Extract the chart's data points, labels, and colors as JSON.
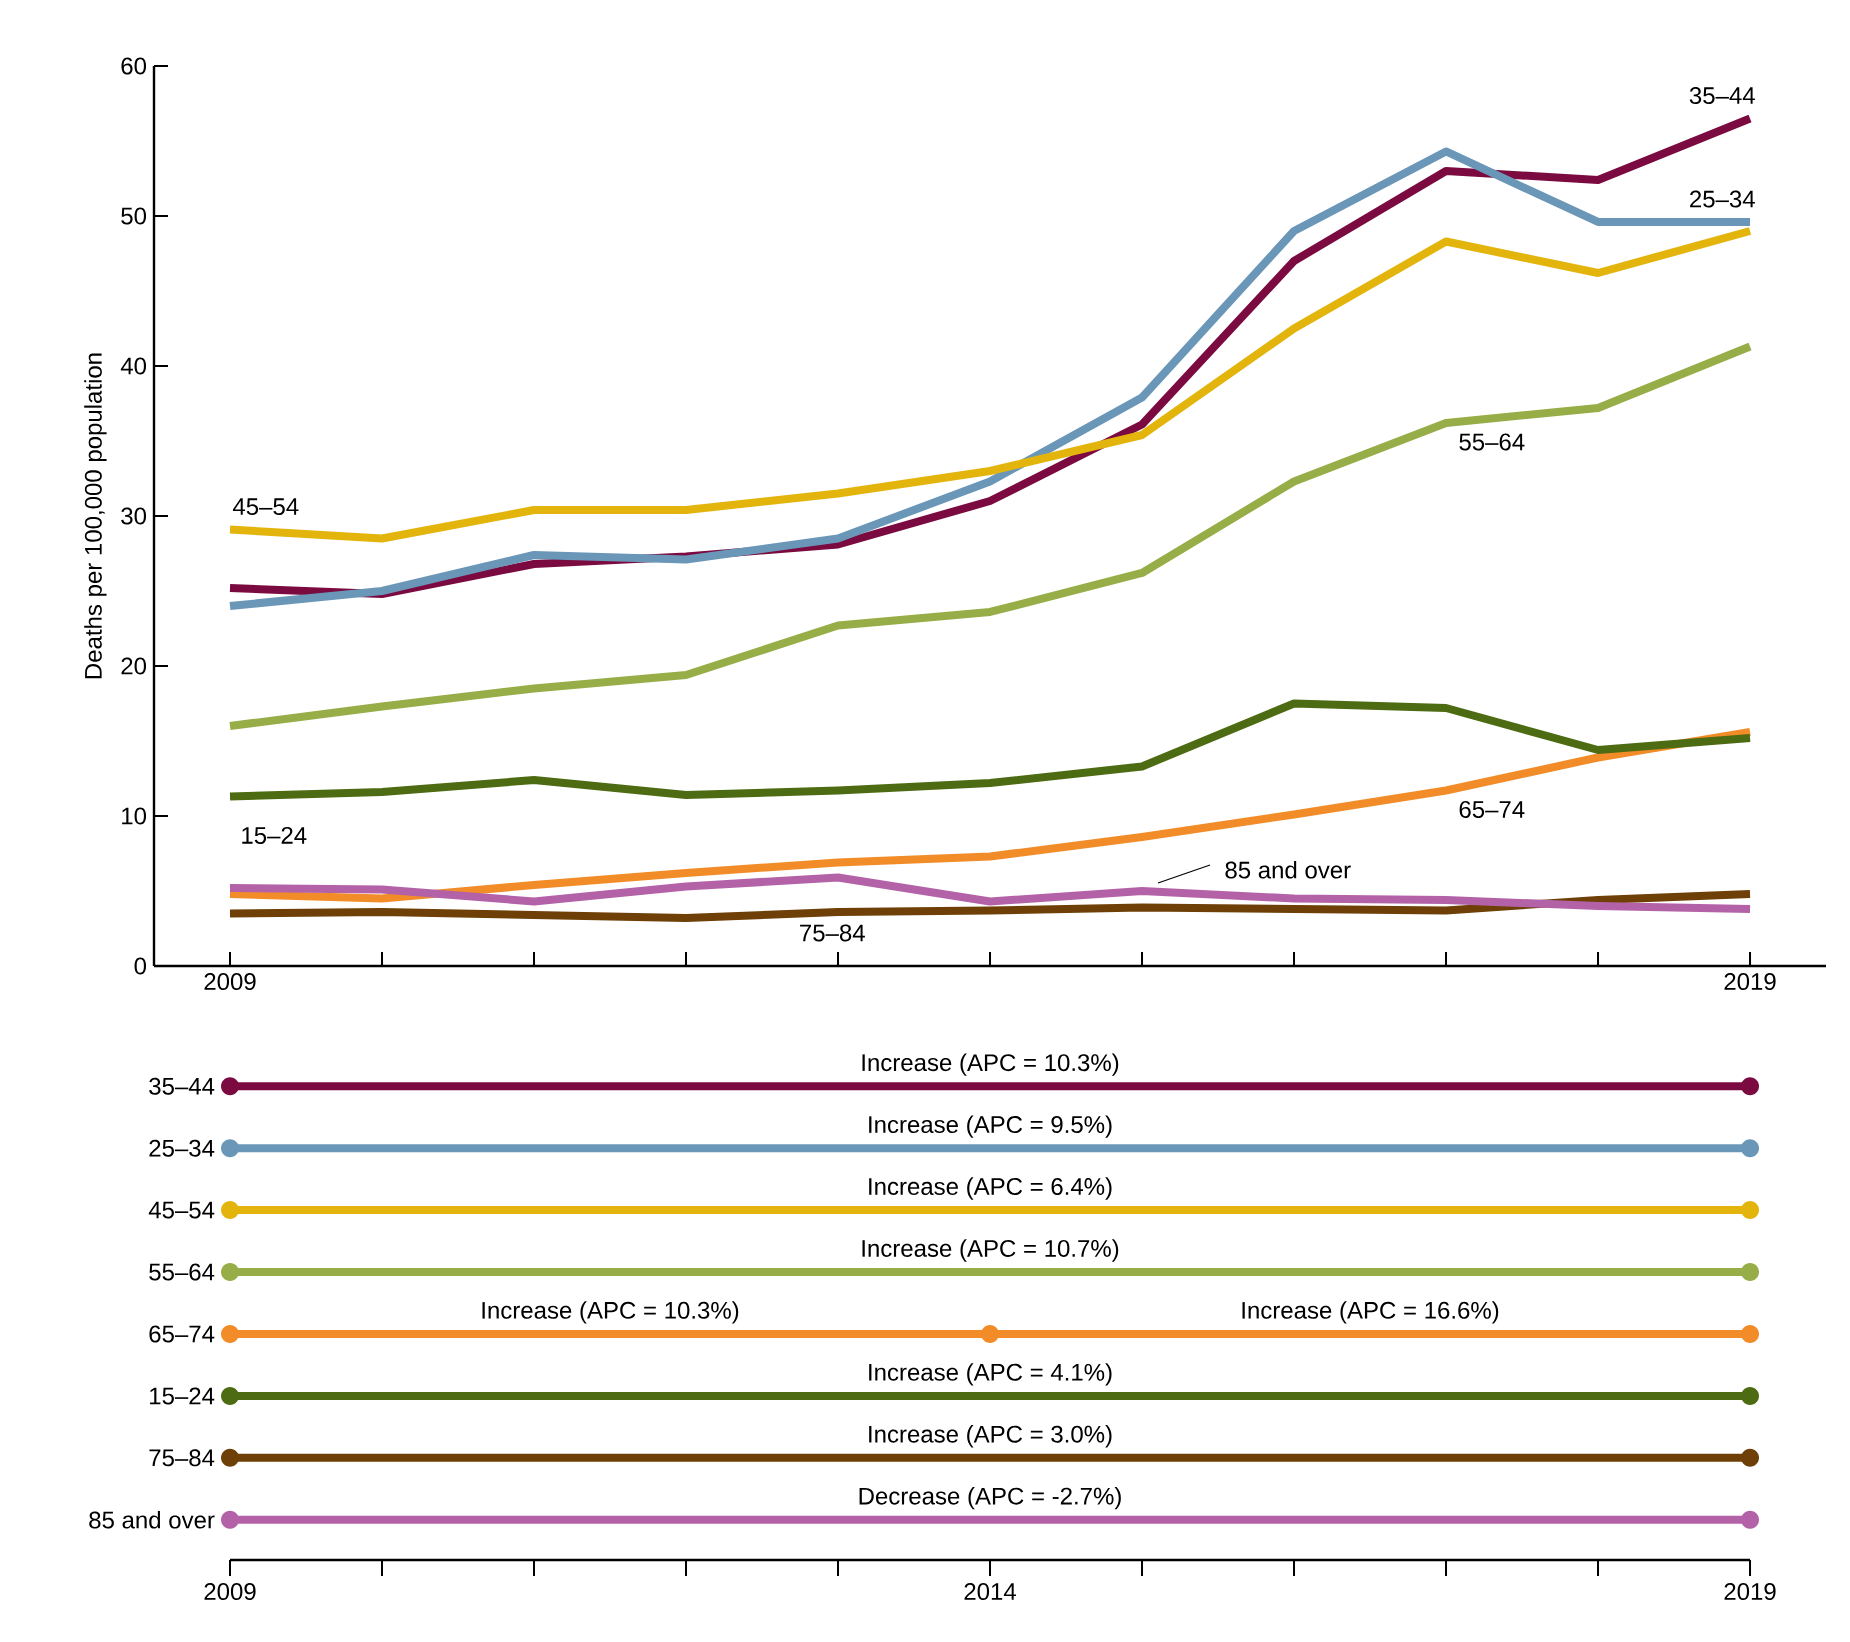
{
  "chart_data": [
    {
      "type": "line",
      "ylabel": "Deaths per 100,000 population",
      "marker": "none",
      "x": [
        2009,
        2010,
        2011,
        2012,
        2013,
        2014,
        2015,
        2016,
        2017,
        2018,
        2019
      ],
      "xlim": [
        2008.5,
        2019.5
      ],
      "xticks": [
        2009,
        {
          "value": 2010,
          "label": null
        },
        {
          "value": 2011,
          "label": null
        },
        {
          "value": 2012,
          "label": null
        },
        {
          "value": 2013,
          "label": null
        },
        {
          "value": 2014,
          "label": null
        },
        {
          "value": 2015,
          "label": null
        },
        {
          "value": 2016,
          "label": null
        },
        {
          "value": 2017,
          "label": null
        },
        {
          "value": 2018,
          "label": null
        },
        2019
      ],
      "ylim": [
        0,
        60
      ],
      "yticks": [
        0,
        10,
        20,
        30,
        40,
        50,
        60
      ],
      "series": [
        {
          "name": "35–44",
          "color": "#7a0a3f",
          "values": [
            25.2,
            24.8,
            26.8,
            27.3,
            28.1,
            31.0,
            36.1,
            47.0,
            53.0,
            52.4,
            56.5
          ]
        },
        {
          "name": "25–34",
          "color": "#6a96b8",
          "values": [
            24.0,
            25.0,
            27.4,
            27.1,
            28.5,
            32.3,
            37.9,
            49.0,
            54.3,
            49.6,
            49.6
          ]
        },
        {
          "name": "45–54",
          "color": "#e3b50c",
          "values": [
            29.1,
            28.5,
            30.4,
            30.4,
            31.5,
            33.0,
            35.4,
            42.5,
            48.3,
            46.2,
            49.0
          ]
        },
        {
          "name": "55–64",
          "color": "#97ad47",
          "values": [
            16.0,
            17.3,
            18.5,
            19.4,
            22.7,
            23.6,
            26.2,
            32.3,
            36.2,
            37.2,
            41.3
          ]
        },
        {
          "name": "65–74",
          "color": "#f28c28",
          "values": [
            4.8,
            4.5,
            5.4,
            6.2,
            6.9,
            7.3,
            8.6,
            10.1,
            11.7,
            13.9,
            15.6
          ]
        },
        {
          "name": "15–24",
          "color": "#4d6b12",
          "values": [
            11.3,
            11.6,
            12.4,
            11.4,
            11.7,
            12.2,
            13.3,
            17.5,
            17.2,
            14.4,
            15.2
          ]
        },
        {
          "name": "75–84",
          "color": "#6e3f06",
          "values": [
            3.5,
            3.6,
            3.4,
            3.2,
            3.6,
            3.7,
            3.9,
            3.8,
            3.7,
            4.4,
            4.8
          ]
        },
        {
          "name": "85 and over",
          "color": "#b462a8",
          "values": [
            5.2,
            5.1,
            4.3,
            5.3,
            5.9,
            4.3,
            5.0,
            4.5,
            4.4,
            4.0,
            3.8
          ]
        }
      ]
    },
    {
      "type": "bar",
      "orientation": "horizontal",
      "categories": [
        "35–44",
        "25–34",
        "45–54",
        "55–64",
        "65–74",
        "15–24",
        "75–84",
        "85 and over"
      ],
      "xlim": [
        2009,
        2019
      ],
      "xticks": [
        2009,
        {
          "value": 2010,
          "label": null
        },
        {
          "value": 2011,
          "label": null
        },
        {
          "value": 2012,
          "label": null
        },
        {
          "value": 2013,
          "label": null
        },
        2014,
        {
          "value": 2015,
          "label": null
        },
        {
          "value": 2016,
          "label": null
        },
        {
          "value": 2017,
          "label": null
        },
        {
          "value": 2018,
          "label": null
        },
        2019
      ],
      "series": [
        {
          "colors": [
            "#7a0a3f",
            "#6a96b8",
            "#e3b50c",
            "#97ad47",
            "#f28c28",
            "#4d6b12",
            "#6e3f06",
            "#b462a8"
          ],
          "base": [
            2009,
            2009,
            2009,
            2009,
            2009,
            2009,
            2009,
            2009
          ],
          "values": [
            10,
            10,
            10,
            10,
            5,
            10,
            10,
            10
          ]
        },
        {
          "color": "#f28c28",
          "base": [
            null,
            null,
            null,
            null,
            2014,
            null,
            null,
            null
          ],
          "values": [
            null,
            null,
            null,
            null,
            5,
            null,
            null,
            null
          ]
        },
        {
          "type": "scatter",
          "marker": "circle",
          "x": [
            "35–44",
            "35–44",
            "25–34",
            "25–34",
            "45–54",
            "45–54",
            "55–64",
            "55–64",
            "65–74",
            "65–74",
            "65–74",
            "15–24",
            "15–24",
            "75–84",
            "75–84",
            "85 and over",
            "85 and over"
          ],
          "values": [
            2009,
            2019,
            2009,
            2019,
            2009,
            2019,
            2009,
            2019,
            2009,
            2014,
            2019,
            2009,
            2019,
            2009,
            2019,
            2009,
            2019
          ],
          "colors": [
            "#7a0a3f",
            "#7a0a3f",
            "#6a96b8",
            "#6a96b8",
            "#e3b50c",
            "#e3b50c",
            "#97ad47",
            "#97ad47",
            "#f28c28",
            "#f28c28",
            "#f28c28",
            "#4d6b12",
            "#4d6b12",
            "#6e3f06",
            "#6e3f06",
            "#b462a8",
            "#b462a8"
          ]
        }
      ],
      "annotations": [
        {
          "text": "Increase (APC = 10.3%)",
          "x": 2014,
          "y": "35–44"
        },
        {
          "text": "Increase (APC = 9.5%)",
          "x": 2014,
          "y": "25–34"
        },
        {
          "text": "Increase (APC = 6.4%)",
          "x": 2014,
          "y": "45–54"
        },
        {
          "text": "Increase (APC = 10.7%)",
          "x": 2014,
          "y": "55–64"
        },
        {
          "text": "Increase (APC = 10.3%)",
          "x": 2011.5,
          "y": "65–74"
        },
        {
          "text": "Increase (APC = 16.6%)",
          "x": 2016.5,
          "y": "65–74"
        },
        {
          "text": "Increase (APC = 4.1%)",
          "x": 2014,
          "y": "15–24"
        },
        {
          "text": "Increase (APC = 3.0%)",
          "x": 2014,
          "y": "75–84"
        },
        {
          "text": "Decrease (APC = -2.7%)",
          "x": 2014,
          "y": "85 and over"
        }
      ]
    }
  ]
}
